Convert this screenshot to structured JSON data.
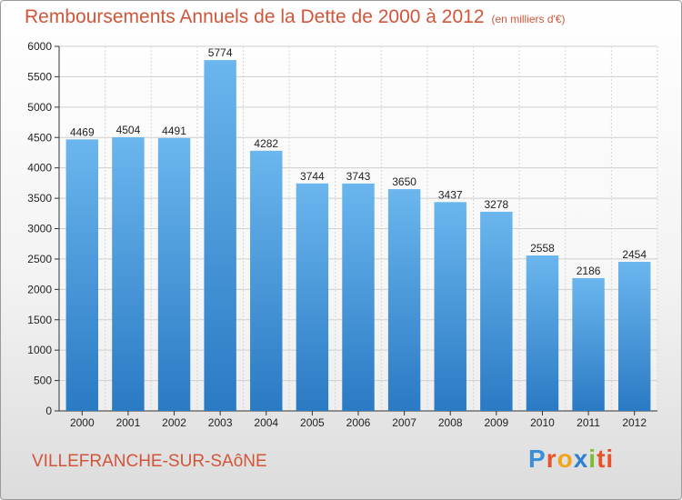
{
  "chart_data": {
    "type": "bar",
    "title": "Remboursements Annuels de la Dette de 2000 à 2012",
    "unit": "(en milliers d'€)",
    "categories": [
      "2000",
      "2001",
      "2002",
      "2003",
      "2004",
      "2005",
      "2006",
      "2007",
      "2008",
      "2009",
      "2010",
      "2011",
      "2012"
    ],
    "values": [
      4469,
      4504,
      4491,
      5774,
      4282,
      3744,
      3743,
      3650,
      3437,
      3278,
      2558,
      2186,
      2454
    ],
    "ylim": [
      0,
      6000
    ],
    "yticks": [
      0,
      500,
      1000,
      1500,
      2000,
      2500,
      3000,
      3500,
      4000,
      4500,
      5000,
      5500,
      6000
    ],
    "grid": true,
    "bar_color": "#3e8fd6"
  },
  "footer": {
    "location": "VILLEFRANCHE-SUR-SAôNE",
    "logo": [
      "P",
      "r",
      "o",
      "x",
      "i",
      "ti"
    ]
  }
}
